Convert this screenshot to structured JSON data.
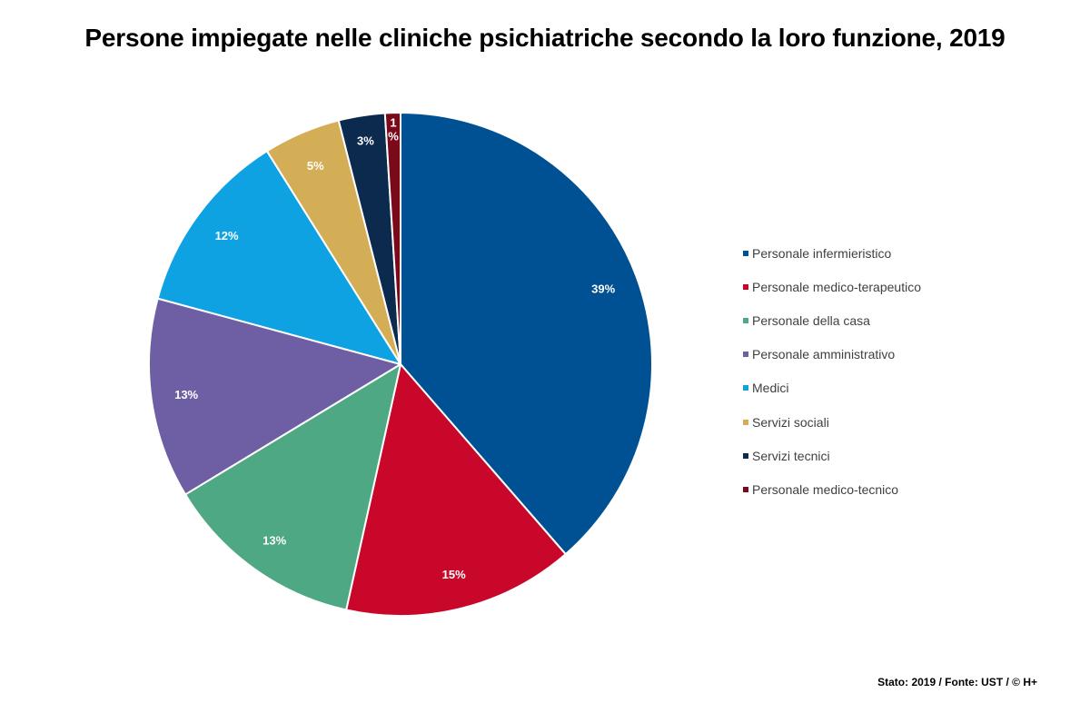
{
  "chart_data": {
    "type": "pie",
    "title": "Persone impiegate nelle cliniche psichiatriche secondo la loro funzione, 2019",
    "categories": [
      "Personale infermieristico",
      "Personale medico-terapeutico",
      "Personale della casa",
      "Personale amministrativo",
      "Medici",
      "Servizi sociali",
      "Servizi tecnici",
      "Personale medico-tecnico"
    ],
    "values": [
      39,
      15,
      13,
      13,
      12,
      5,
      3,
      1
    ],
    "data_labels": [
      "39%",
      "15%",
      "13%",
      "13%",
      "12%",
      "5%",
      "3%",
      "1 %"
    ],
    "colors": [
      "#005094",
      "#C8072B",
      "#4EA884",
      "#6E5FA4",
      "#0FA2E2",
      "#D4AE56",
      "#0B2A4E",
      "#7A0A1A"
    ],
    "start_angle": "12 o'clock",
    "direction": "clockwise",
    "legend_position": "right"
  },
  "footer": {
    "source": "Stato: 2019 / Fonte: UST / © H+"
  }
}
